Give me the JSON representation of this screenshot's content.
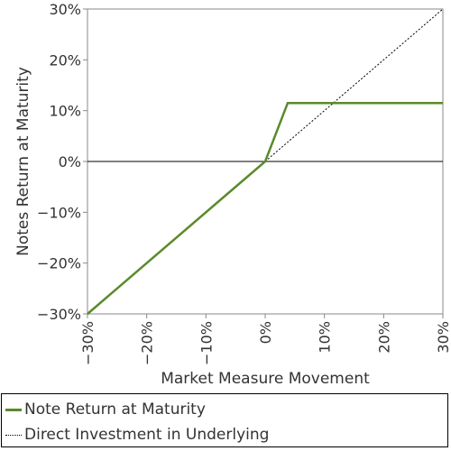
{
  "chart_data": {
    "type": "line",
    "title": "",
    "xlabel": "Market Measure Movement",
    "ylabel": "Notes Return at Maturity",
    "xlim": [
      -30,
      30
    ],
    "ylim": [
      -30,
      30
    ],
    "x_ticks": [
      "−30%",
      "−20%",
      "−10%",
      "0%",
      "10%",
      "20%",
      "30%"
    ],
    "y_ticks": [
      "30%",
      "20%",
      "10%",
      "0%",
      "−10%",
      "−20%",
      "−30%"
    ],
    "grid": false,
    "legend_position": "bottom",
    "series": [
      {
        "name": "Note Return at Maturity",
        "color": "#5a8a2a",
        "style": "solid",
        "x": [
          -30,
          0,
          3.8,
          30
        ],
        "y": [
          -30,
          0,
          11.5,
          11.5
        ]
      },
      {
        "name": "Direct Investment in Underlying",
        "color": "#000000",
        "style": "dotted",
        "x": [
          0,
          30
        ],
        "y": [
          0,
          30
        ]
      }
    ]
  }
}
